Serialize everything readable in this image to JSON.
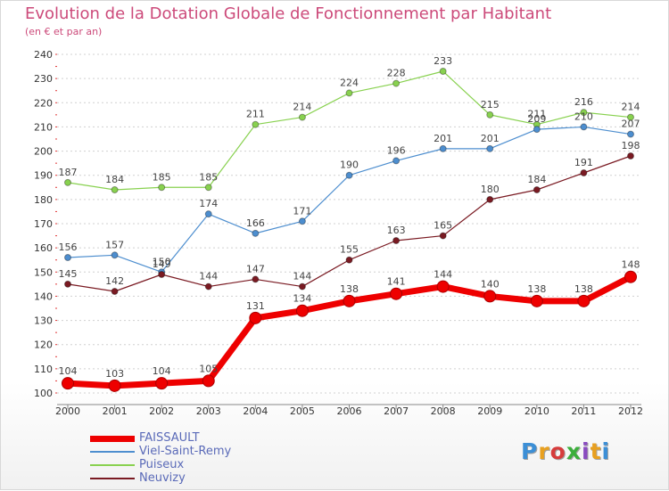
{
  "title": "Evolution de la Dotation Globale de Fonctionnement par Habitant",
  "subtitle": "(en € et par an)",
  "logo": "Proxiti",
  "colors": {
    "title": "#cc4a7a",
    "grid": "#d0d0d0",
    "axis": "#888888"
  },
  "chart_data": {
    "type": "line",
    "title": "Evolution de la Dotation Globale de Fonctionnement par Habitant",
    "subtitle": "(en € et par an)",
    "x": [
      "2000",
      "2001",
      "2002",
      "2003",
      "2004",
      "2005",
      "2006",
      "2007",
      "2008",
      "2009",
      "2010",
      "2011",
      "2012"
    ],
    "ylim": [
      100,
      240
    ],
    "yticks": [
      100,
      110,
      120,
      130,
      140,
      150,
      160,
      170,
      180,
      190,
      200,
      210,
      220,
      230,
      240
    ],
    "grid": "horizontal dotted",
    "legend_position": "bottom-left",
    "series": [
      {
        "name": "FAISSAULT",
        "color": "#ee0000",
        "values": [
          104,
          103,
          104,
          105,
          131,
          134,
          138,
          141,
          144,
          140,
          138,
          138,
          148
        ]
      },
      {
        "name": "Viel-Saint-Remy",
        "color": "#4d8ecf",
        "values": [
          156,
          157,
          150,
          174,
          166,
          171,
          190,
          196,
          201,
          201,
          209,
          210,
          207
        ]
      },
      {
        "name": "Puiseux",
        "color": "#88d14f",
        "values": [
          187,
          184,
          185,
          185,
          211,
          214,
          224,
          228,
          233,
          215,
          211,
          216,
          214
        ]
      },
      {
        "name": "Neuvizy",
        "color": "#7a1a22",
        "values": [
          145,
          142,
          149,
          144,
          147,
          144,
          155,
          163,
          165,
          180,
          184,
          191,
          198
        ]
      }
    ]
  }
}
